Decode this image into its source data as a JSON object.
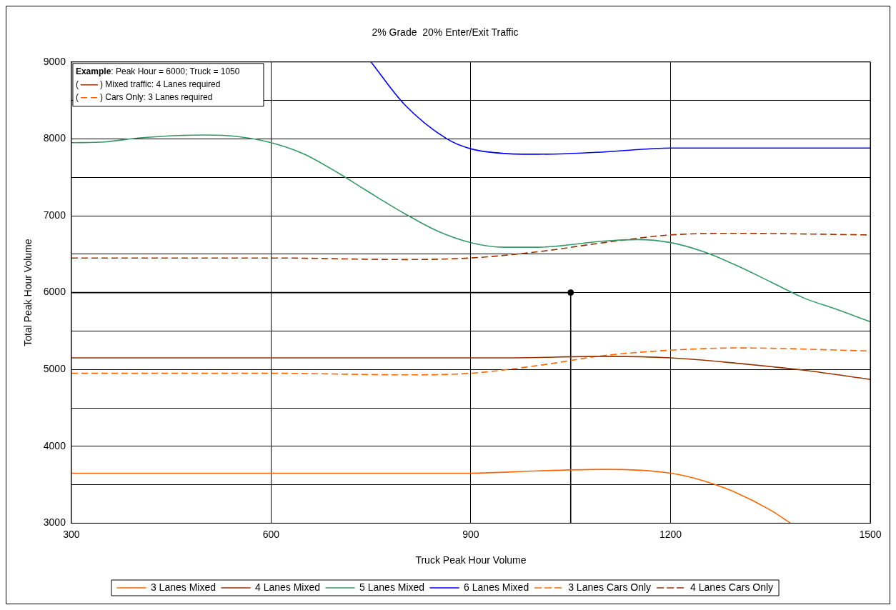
{
  "chart_data": {
    "type": "line",
    "title": "2% Grade  20% Enter/Exit Traffic",
    "xlabel": "Truck Peak Hour Volume",
    "ylabel": "Total Peak Hour Volume",
    "xlim": [
      300,
      1500
    ],
    "xticks": [
      300,
      600,
      900,
      1200,
      1500
    ],
    "ylim": [
      3000,
      9000
    ],
    "yticks": [
      3000,
      {
        "value": 3500,
        "label": null
      },
      4000,
      {
        "value": 4500,
        "label": null
      },
      5000,
      {
        "value": 5500,
        "label": null
      },
      6000,
      {
        "value": 6500,
        "label": null
      },
      7000,
      {
        "value": 7500,
        "label": null
      },
      8000,
      {
        "value": 8500,
        "label": null
      },
      9000
    ],
    "grid": true,
    "legend": "bottom",
    "marker": "none",
    "annotations": [
      "Example: Peak Hour = 6000; Truck = 1050",
      "( ) Mixed traffic: 4 Lanes required",
      "( ) Cars Only: 3 Lanes required"
    ],
    "series": [
      {
        "name": "3 Lanes Mixed",
        "color": "#ff6600",
        "line_style": "solid",
        "x": [
          300,
          600,
          900,
          1000,
          1100,
          1200,
          1250,
          1300,
          1350,
          1380
        ],
        "values": [
          3650,
          3650,
          3650,
          3680,
          3700,
          3650,
          3550,
          3390,
          3170,
          3000
        ]
      },
      {
        "name": "4 Lanes Mixed",
        "color": "#993300",
        "line_style": "solid",
        "x": [
          300,
          600,
          950,
          1100,
          1200,
          1300,
          1400,
          1500
        ],
        "values": [
          5150,
          5150,
          5150,
          5170,
          5150,
          5080,
          4990,
          4870
        ]
      },
      {
        "name": "5 Lanes Mixed",
        "color": "#339966",
        "line_style": "solid",
        "x": [
          300,
          350,
          400,
          500,
          550,
          600,
          650,
          700,
          750,
          800,
          850,
          900,
          950,
          1000,
          1100,
          1150,
          1200,
          1250,
          1300,
          1350,
          1400,
          1450,
          1500
        ],
        "values": [
          7950,
          7960,
          8010,
          8050,
          8030,
          7950,
          7800,
          7560,
          7290,
          7030,
          6800,
          6650,
          6590,
          6590,
          6670,
          6690,
          6650,
          6530,
          6350,
          6140,
          5930,
          5780,
          5620
        ]
      },
      {
        "name": "6 Lanes Mixed",
        "color": "#0000ff",
        "line_style": "solid",
        "x": [
          750,
          800,
          864,
          900,
          950,
          1000,
          1100,
          1200,
          1500
        ],
        "values": [
          9000,
          8450,
          8000,
          7870,
          7810,
          7800,
          7830,
          7880,
          7880
        ]
      },
      {
        "name": "3 Lanes Cars Only",
        "color": "#ff6600",
        "line_style": "dashed",
        "x": [
          300,
          600,
          800,
          900,
          1000,
          1100,
          1200,
          1300,
          1500
        ],
        "values": [
          4950,
          4950,
          4930,
          4950,
          5050,
          5180,
          5250,
          5280,
          5240
        ]
      },
      {
        "name": "4 Lanes Cars Only",
        "color": "#993300",
        "line_style": "dashed",
        "x": [
          300,
          600,
          800,
          900,
          1000,
          1100,
          1200,
          1300,
          1500
        ],
        "values": [
          6450,
          6450,
          6430,
          6450,
          6530,
          6650,
          6750,
          6770,
          6750
        ]
      },
      {
        "color": "#000000",
        "line_style": "solid",
        "x": [
          300,
          1050,
          1050
        ],
        "values": [
          6000,
          6000,
          3000
        ]
      },
      {
        "type": "scatter",
        "color": "#000000",
        "marker": "circle",
        "x": [
          1050
        ],
        "values": [
          6000
        ]
      }
    ]
  }
}
